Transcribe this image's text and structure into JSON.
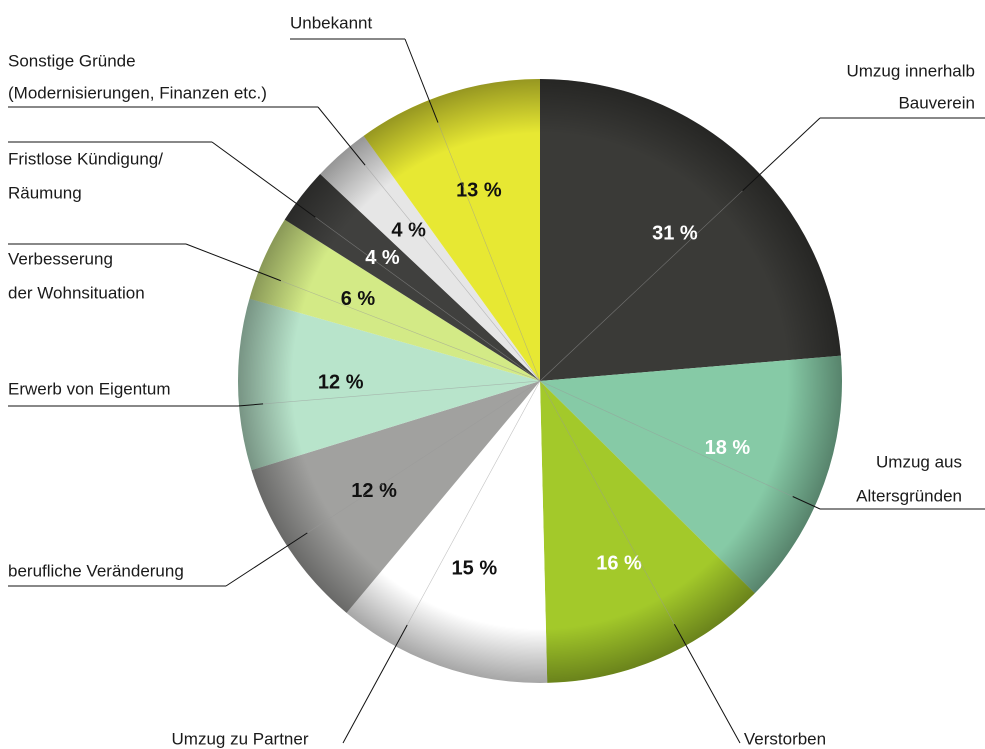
{
  "chart_data": {
    "type": "pie",
    "categories": [
      [
        "Umzug innerhalb",
        "Bauverein"
      ],
      [
        "Umzug aus",
        "Altersgründen"
      ],
      [
        "Verstorben"
      ],
      [
        "Umzug zu Partner"
      ],
      [
        "berufliche Veränderung"
      ],
      [
        "Erwerb von Eigentum"
      ],
      [
        "Verbesserung",
        "der Wohnsituation"
      ],
      [
        "Fristlose Kündigung/",
        "Räumung"
      ],
      [
        "Sonstige Gründe",
        "(Modernisierungen, Finanzen etc.)"
      ],
      [
        "Unbekannt"
      ]
    ],
    "values": [
      31,
      18,
      16,
      15,
      12,
      12,
      6,
      4,
      4,
      13
    ],
    "value_labels": [
      "31 %",
      "18 %",
      "16 %",
      "15 %",
      "12 %",
      "12 %",
      "6 %",
      "4 %",
      "4 %",
      "13 %"
    ],
    "colors": [
      "#3a3a37",
      "#86caa6",
      "#a3c92a",
      "#ffffff",
      "#a1a19f",
      "#b8e4cb",
      "#d3ea86",
      "#40403e",
      "#e6e6e6",
      "#e7e833"
    ],
    "label_colors": [
      "#ffffff",
      "#ffffff",
      "#ffffff",
      "#111111",
      "#111111",
      "#111111",
      "#111111",
      "#ffffff",
      "#111111",
      "#111111"
    ]
  }
}
